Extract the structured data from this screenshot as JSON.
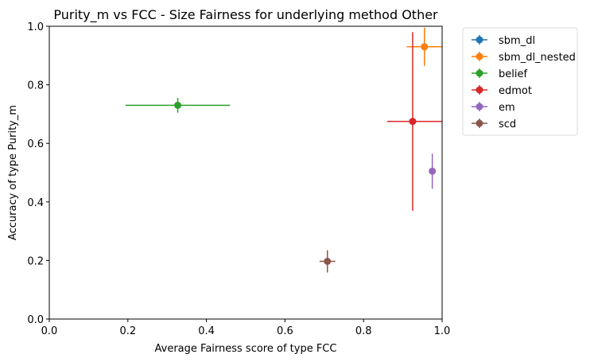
{
  "chart_data": {
    "type": "scatter",
    "title": "Purity_m vs FCC - Size Fairness for underlying method Other",
    "xlabel": "Average Fairness score of type FCC",
    "ylabel": "Accuracy of type Purity_m",
    "xlim": [
      0.0,
      1.0
    ],
    "ylim": [
      0.0,
      1.0
    ],
    "xticks": [
      "0.0",
      "0.2",
      "0.4",
      "0.6",
      "0.8",
      "1.0"
    ],
    "yticks": [
      "0.0",
      "0.2",
      "0.4",
      "0.6",
      "0.8",
      "1.0"
    ],
    "grid": false,
    "legend_position": "outside-right-top",
    "series": [
      {
        "name": "sbm_dl",
        "color": "#1f77b4",
        "x": 0.955,
        "y": 0.93,
        "xerr": [
          0.045,
          0.045
        ],
        "yerr": [
          0.065,
          0.065
        ]
      },
      {
        "name": "sbm_dl_nested",
        "color": "#ff7f0e",
        "x": 0.955,
        "y": 0.93,
        "xerr": [
          0.045,
          0.045
        ],
        "yerr": [
          0.065,
          0.065
        ]
      },
      {
        "name": "belief",
        "color": "#2ca02c",
        "x": 0.327,
        "y": 0.73,
        "xerr": [
          0.133,
          0.133
        ],
        "yerr": [
          0.025,
          0.025
        ]
      },
      {
        "name": "edmot",
        "color": "#d62728",
        "x": 0.925,
        "y": 0.675,
        "xerr": [
          0.065,
          0.075
        ],
        "yerr": [
          0.305,
          0.305
        ]
      },
      {
        "name": "em",
        "color": "#9467bd",
        "x": 0.975,
        "y": 0.505,
        "xerr": [
          0.0,
          0.0
        ],
        "yerr": [
          0.06,
          0.06
        ]
      },
      {
        "name": "scd",
        "color": "#8c564b",
        "x": 0.708,
        "y": 0.197,
        "xerr": [
          0.02,
          0.02
        ],
        "yerr": [
          0.038,
          0.038
        ]
      }
    ]
  }
}
